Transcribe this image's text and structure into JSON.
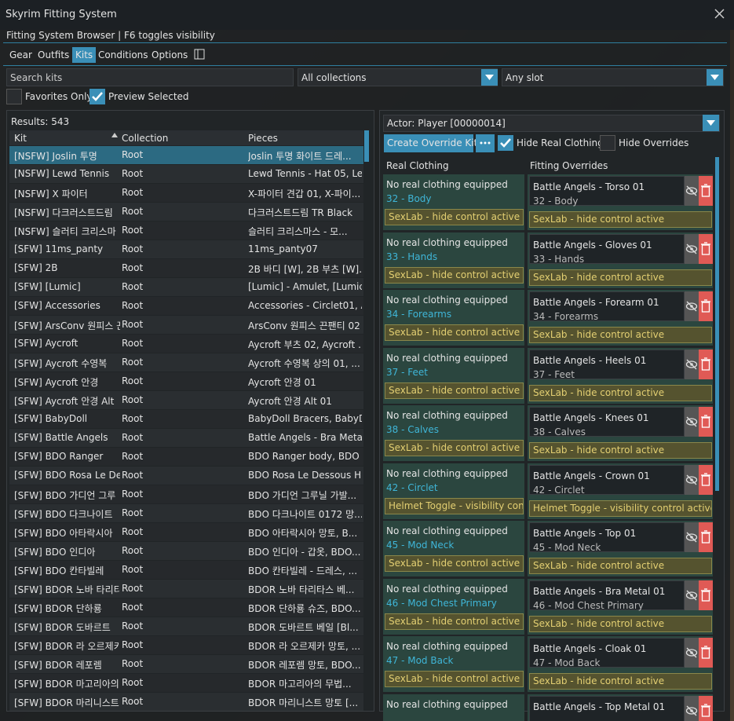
{
  "window": {
    "title": "Skyrim Fitting System"
  },
  "header": {
    "subtitle": "Fitting System Browser | F6 toggles visibility"
  },
  "tabs": [
    {
      "label": "Gear",
      "active": false
    },
    {
      "label": "Outfits",
      "active": false
    },
    {
      "label": "Kits",
      "active": true
    },
    {
      "label": "Conditions",
      "active": false
    },
    {
      "label": "Options",
      "active": false
    }
  ],
  "filters": {
    "search_placeholder": "Search kits",
    "collection": "All collections",
    "slot": "Any slot",
    "favorites_only": {
      "label": "Favorites Only",
      "checked": false
    },
    "preview_selected": {
      "label": "Preview Selected",
      "checked": true
    }
  },
  "kits": {
    "results": "Results: 543",
    "columns": [
      "Kit",
      "Collection",
      "Pieces"
    ],
    "selected_row": 0,
    "rows": [
      [
        "[NSFW] Joslin 투명",
        "Root",
        "Joslin 투명 화이트 드레..."
      ],
      [
        "[NSFW] Lewd Tennis",
        "Root",
        "Lewd Tennis - Hat 05, Le..."
      ],
      [
        "[NSFW] X 파이터",
        "Root",
        "X-파이터 견갑 01, X-파이..."
      ],
      [
        "[NSFW] 다크러스트드림",
        "Root",
        "다크러스트드림 TR Black"
      ],
      [
        "[NSFW] 슬러티 크리스마",
        "Root",
        "슬러티 크리스마스 - 모..."
      ],
      [
        "[SFW] 11ms_panty",
        "Root",
        "11ms_panty07"
      ],
      [
        "[SFW] 2B",
        "Root",
        "2B 바디 [W], 2B 부츠 [W]..."
      ],
      [
        "[SFW] [Lumic]",
        "Root",
        "[Lumic] - Amulet, [Lumic..."
      ],
      [
        "[SFW] Accessories",
        "Root",
        "Accessories - Circlet01, A..."
      ],
      [
        "[SFW] ArsConv 원피스 끈",
        "Root",
        "ArsConv 원피스 끈팬티 02"
      ],
      [
        "[SFW] Aycroft",
        "Root",
        "Aycroft 부츠 02, Aycroft ..."
      ],
      [
        "[SFW] Aycroft 수영복",
        "Root",
        "Aycroft 수영복 상의 01, ..."
      ],
      [
        "[SFW] Aycroft 안경",
        "Root",
        "Aycroft 안경 01"
      ],
      [
        "[SFW] Aycroft 안경 Alt",
        "Root",
        "Aycroft 안경 Alt 01"
      ],
      [
        "[SFW] BabyDoll",
        "Root",
        "BabyDoll Bracers, BabyD..."
      ],
      [
        "[SFW] Battle Angels",
        "Root",
        "Battle Angels - Bra Meta..."
      ],
      [
        "[SFW] BDO Ranger",
        "Root",
        "BDO Ranger body, BDO ..."
      ],
      [
        "[SFW] BDO Rosa Le Dess",
        "Root",
        "BDO Rosa Le Dessous H..."
      ],
      [
        "[SFW] BDO 가디언 그루",
        "Root",
        "BDO 가디언 그루닐 가발..."
      ],
      [
        "[SFW] BDO 다크나이트",
        "Root",
        "BDO 다크나이트 0172 망..."
      ],
      [
        "[SFW] BDO 아타락시아",
        "Root",
        "BDO 아타락시아 망토, B..."
      ],
      [
        "[SFW] BDO 인디아",
        "Root",
        "BDO 인디아 - 갑옷, BDO..."
      ],
      [
        "[SFW] BDO 칸타빌레",
        "Root",
        "BDO 칸타빌레 - 드레스, ..."
      ],
      [
        "[SFW] BDOR 노바 타리티",
        "Root",
        "BDOR 노바 타리타스 베..."
      ],
      [
        "[SFW] BDOR 단하룡",
        "Root",
        "BDOR 단하룡 슈즈, BDO..."
      ],
      [
        "[SFW] BDOR 도바르트",
        "Root",
        "BDOR 도바르트 베일 [Bl..."
      ],
      [
        "[SFW] BDOR 라 오르제키",
        "Root",
        "BDOR 라 오르제카 망토, ..."
      ],
      [
        "[SFW] BDOR 레포렘",
        "Root",
        "BDOR 레포렘 망토, BDO..."
      ],
      [
        "[SFW] BDOR 마고리아의",
        "Root",
        "BDOR 마고리아의 무법..."
      ],
      [
        "[SFW] BDOR 마리니스트",
        "Root",
        "BDOR 마리니스트 망토 [..."
      ]
    ]
  },
  "overrides": {
    "actor": "Actor: Player  [00000014]",
    "create_button": "Create Override Kit",
    "hide_real": {
      "label": "Hide Real Clothing",
      "checked": true
    },
    "hide_overrides": {
      "label": "Hide Overrides",
      "checked": false
    },
    "columns": [
      "Real Clothing",
      "Fitting Overrides"
    ],
    "slots": [
      {
        "real": "No real clothing equipped",
        "slot": "32 - Body",
        "real_note": "SexLab - hide control active",
        "override": "Battle Angels - Torso 01",
        "override_slot": "32 - Body",
        "override_note": "SexLab - hide control active"
      },
      {
        "real": "No real clothing equipped",
        "slot": "33 - Hands",
        "real_note": "SexLab - hide control active",
        "override": "Battle Angels - Gloves 01",
        "override_slot": "33 - Hands",
        "override_note": "SexLab - hide control active"
      },
      {
        "real": "No real clothing equipped",
        "slot": "34 - Forearms",
        "real_note": "SexLab - hide control active",
        "override": "Battle Angels - Forearm 01",
        "override_slot": "34 - Forearms",
        "override_note": "SexLab - hide control active"
      },
      {
        "real": "No real clothing equipped",
        "slot": "37 - Feet",
        "real_note": "SexLab - hide control active",
        "override": "Battle Angels - Heels 01",
        "override_slot": "37 - Feet",
        "override_note": "SexLab - hide control active"
      },
      {
        "real": "No real clothing equipped",
        "slot": "38 - Calves",
        "real_note": "SexLab - hide control active",
        "override": "Battle Angels - Knees 01",
        "override_slot": "38 - Calves",
        "override_note": "SexLab - hide control active"
      },
      {
        "real": "No real clothing equipped",
        "slot": "42 - Circlet",
        "real_note": "Helmet Toggle - visibility contr",
        "override": "Battle Angels - Crown 01",
        "override_slot": "42 - Circlet",
        "override_note": "Helmet Toggle - visibility control active"
      },
      {
        "real": "No real clothing equipped",
        "slot": "45 - Mod Neck",
        "real_note": "SexLab - hide control active",
        "override": "Battle Angels - Top 01",
        "override_slot": "45 - Mod Neck",
        "override_note": "SexLab - hide control active"
      },
      {
        "real": "No real clothing equipped",
        "slot": "46 - Mod Chest Primary",
        "real_note": "SexLab - hide control active",
        "override": "Battle Angels - Bra Metal 01",
        "override_slot": "46 - Mod Chest Primary",
        "override_note": "SexLab - hide control active"
      },
      {
        "real": "No real clothing equipped",
        "slot": "47 - Mod Back",
        "real_note": "SexLab - hide control active",
        "override": "Battle Angels - Cloak 01",
        "override_slot": "47 - Mod Back",
        "override_note": "SexLab - hide control active"
      },
      {
        "real": "No real clothing equipped",
        "override": "Battle Angels - Top Metal 01"
      }
    ]
  }
}
